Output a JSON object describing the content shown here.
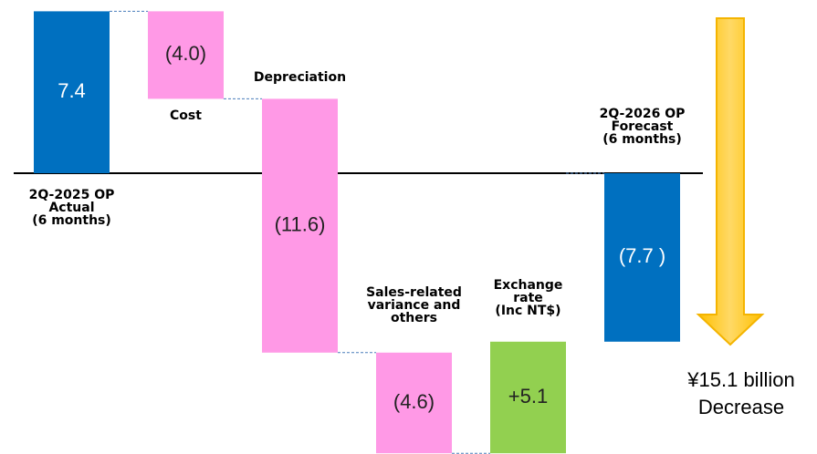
{
  "chart_data": {
    "type": "waterfall",
    "categories": [
      "2Q-2025 OP\nActual\n(6 months)",
      "Cost",
      "Depreciation",
      "Sales-related\nvariance and\nothers",
      "Exchange\nrate\n(Inc NT$)",
      "2Q-2026 OP\nForecast\n(6 months)"
    ],
    "values": [
      7.4,
      -4.0,
      -11.6,
      -4.6,
      5.1,
      -7.7
    ],
    "value_labels": [
      "7.4",
      "(4.0)",
      "(11.6)",
      "(4.6)",
      "+5.1",
      "(7.7 )"
    ],
    "colors": [
      "#0070c0",
      "#ff99e6",
      "#ff99e6",
      "#ff99e6",
      "#92d050",
      "#0070c0"
    ],
    "annotation": "¥15.1 billion\nDecrease"
  }
}
